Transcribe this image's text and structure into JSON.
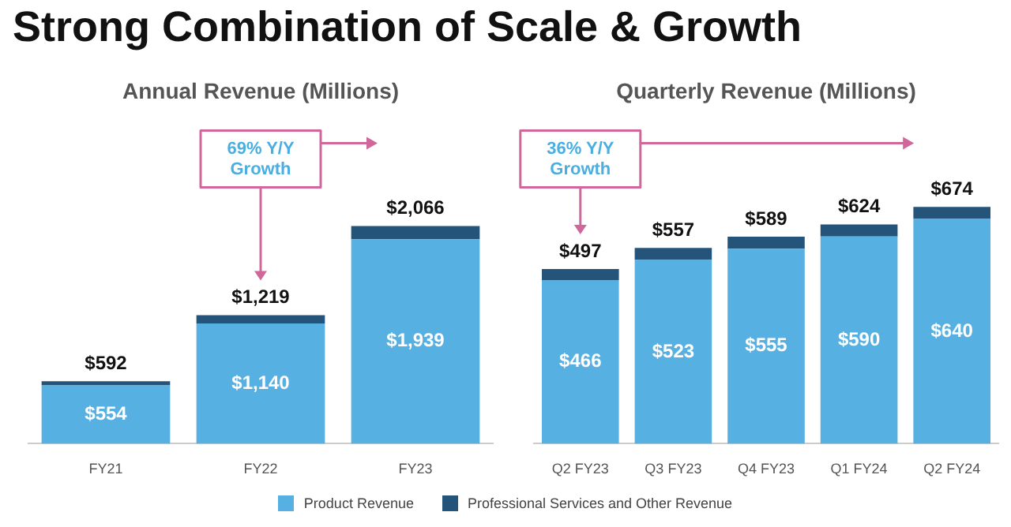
{
  "chart_data": [
    {
      "type": "other",
      "title": "Strong Combination of Scale & Growth"
    },
    {
      "type": "bar",
      "title": "Annual Revenue (Millions)",
      "stacked": true,
      "categories": [
        "FY21",
        "FY22",
        "FY23"
      ],
      "series": [
        {
          "color": "#56b0e2",
          "values": [
            554,
            1140,
            1939
          ],
          "value_labels": [
            "$554",
            "$1,140",
            "$1,939"
          ]
        },
        {
          "color": "#245479",
          "values": [
            38,
            79,
            127
          ],
          "value_labels": [
            null,
            null,
            null
          ]
        }
      ],
      "totals": [
        "$592",
        "$1,219",
        "$2,066"
      ],
      "annotations": [
        "69% Y/Y Growth"
      ],
      "legend": false
    },
    {
      "type": "bar",
      "title": "Quarterly Revenue (Millions)",
      "stacked": true,
      "categories": [
        "Q2 FY23",
        "Q3 FY23",
        "Q4 FY23",
        "Q1 FY24",
        "Q2 FY24"
      ],
      "series": [
        {
          "name": "Product Revenue",
          "color": "#56b0e2",
          "values": [
            466,
            523,
            555,
            590,
            640
          ],
          "value_labels": [
            "$466",
            "$523",
            "$555",
            "$590",
            "$640"
          ]
        },
        {
          "name": "Professional Services and Other Revenue",
          "color": "#245479",
          "values": [
            31,
            34,
            34,
            34,
            34
          ],
          "value_labels": [
            null,
            null,
            null,
            null,
            null
          ]
        }
      ],
      "totals": [
        "$497",
        "$557",
        "$589",
        "$624",
        "$674"
      ],
      "annotations": [
        "36% Y/Y Growth"
      ],
      "legend": "bottom"
    }
  ]
}
